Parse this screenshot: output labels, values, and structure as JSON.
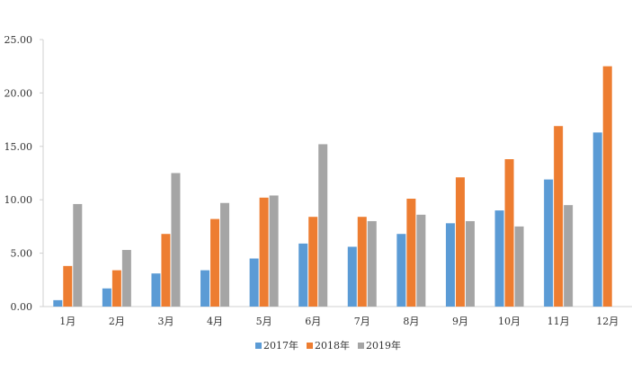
{
  "chart_data": {
    "type": "bar",
    "title": "",
    "xlabel": "",
    "ylabel": "",
    "ylim": [
      0,
      25
    ],
    "yticks": [
      "0.00",
      "5.00",
      "10.00",
      "15.00",
      "20.00",
      "25.00"
    ],
    "grid": false,
    "legend_position": "bottom",
    "categories": [
      "1月",
      "2月",
      "3月",
      "4月",
      "5月",
      "6月",
      "7月",
      "8月",
      "9月",
      "10月",
      "11月",
      "12月"
    ],
    "series": [
      {
        "name": "2017年",
        "color": "#5B9BD5",
        "values": [
          0.6,
          1.7,
          3.1,
          3.4,
          4.5,
          5.9,
          5.6,
          6.8,
          7.8,
          9.0,
          11.9,
          16.3
        ]
      },
      {
        "name": "2018年",
        "color": "#ED7D31",
        "values": [
          3.8,
          3.4,
          6.8,
          8.2,
          10.2,
          8.4,
          8.4,
          10.1,
          12.1,
          13.8,
          16.9,
          22.5
        ]
      },
      {
        "name": "2019年",
        "color": "#A5A5A5",
        "values": [
          9.6,
          5.3,
          12.5,
          9.7,
          10.4,
          15.2,
          8.0,
          8.6,
          8.0,
          7.5,
          9.5,
          null
        ]
      }
    ]
  }
}
